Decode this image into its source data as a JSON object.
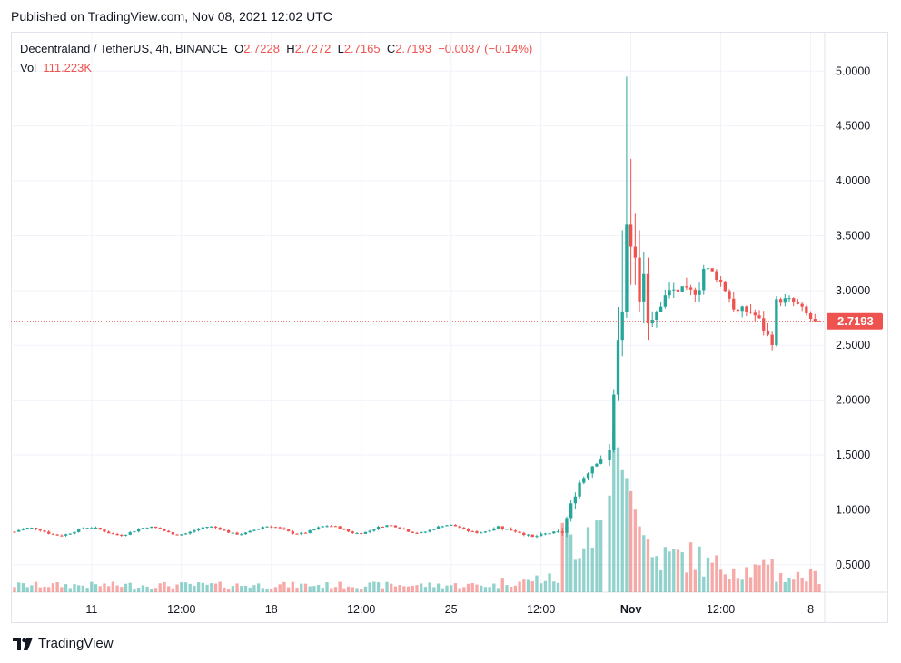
{
  "header": {
    "published": "Published on TradingView.com, Nov 08, 2021 12:02 UTC"
  },
  "legend": {
    "symbol": "Decentraland / TetherUS, 4h, BINANCE",
    "o_label": "O",
    "o_value": "2.7228",
    "h_label": "H",
    "h_value": "2.7272",
    "l_label": "L",
    "l_value": "2.7165",
    "c_label": "C",
    "c_value": "2.7193",
    "change": "−0.0037 (−0.14%)",
    "vol_label": "Vol",
    "vol_value": "111.223K"
  },
  "footer": {
    "brand": "TradingView"
  },
  "colors": {
    "up": "#26a69a",
    "down": "#ef5350",
    "grid": "#f0f3fa",
    "last_price_bg": "#ef5350"
  },
  "chart_data": {
    "type": "candlestick",
    "symbol": "Decentraland / TetherUS",
    "interval": "4h",
    "exchange": "BINANCE",
    "y_ticks": [
      "5.0000",
      "4.5000",
      "4.0000",
      "3.5000",
      "3.0000",
      "2.5000",
      "2.0000",
      "1.5000",
      "1.0000",
      "0.5000"
    ],
    "y_tick_values": [
      5.0,
      4.5,
      4.0,
      3.5,
      3.0,
      2.5,
      2.0,
      1.5,
      1.0,
      0.5
    ],
    "x_ticks": [
      "11",
      "12:00",
      "18",
      "12:00",
      "25",
      "12:00",
      "Nov",
      "12:00",
      "8"
    ],
    "x_tick_dates": [
      "2021-10-11",
      "2021-10-14",
      "2021-10-18",
      "2021-10-21",
      "2021-10-25",
      "2021-10-28",
      "2021-11-01",
      "2021-11-04",
      "2021-11-08"
    ],
    "last_price": "2.7193",
    "last_price_value": 2.7193,
    "ylim": [
      0.25,
      5.35
    ],
    "grid": true,
    "candle_hours": 4,
    "first_candle": "2021-10-08 00:00",
    "ohlc_segments": [
      {
        "from": "2021-10-08 00:00",
        "to": "2021-10-27 00:00",
        "start": 0.8,
        "end": 0.83,
        "base": 0.78,
        "wave": 0.035,
        "noise": 0.015,
        "volume": 8
      },
      {
        "from": "2021-10-27 00:00",
        "to": "2021-10-28 04:00",
        "start": 0.83,
        "end": 0.75,
        "base": 0.75,
        "wave": 0.01,
        "noise": 0.02,
        "volume": 12
      },
      {
        "from": "2021-10-28 04:00",
        "to": "2021-10-29 08:00",
        "start": 0.75,
        "end": 0.8,
        "base": 0.77,
        "wave": 0.01,
        "noise": 0.02,
        "volume": 15
      },
      {
        "from": "2021-10-29 08:00",
        "to": "2021-10-30 04:00",
        "start": 0.8,
        "end": 1.3,
        "base": 1.05,
        "wave": 0.05,
        "noise": 0.06,
        "volume": 60
      },
      {
        "from": "2021-10-30 04:00",
        "to": "2021-10-31 00:00",
        "start": 1.3,
        "end": 1.45,
        "base": 1.38,
        "wave": 0.06,
        "noise": 0.07,
        "volume": 75
      }
    ],
    "ohlc": [
      [
        "2021-10-31 04:00",
        1.45,
        1.6,
        1.4,
        1.55,
        110
      ],
      [
        "2021-10-31 08:00",
        1.55,
        2.1,
        1.52,
        2.05,
        185
      ],
      [
        "2021-10-31 12:00",
        2.05,
        2.85,
        2.0,
        2.55,
        165
      ],
      [
        "2021-10-31 16:00",
        2.55,
        3.55,
        2.4,
        2.8,
        140
      ],
      [
        "2021-10-31 20:00",
        2.8,
        4.95,
        2.75,
        3.6,
        130
      ],
      [
        "2021-11-01 00:00",
        3.6,
        4.2,
        3.05,
        3.4,
        115
      ],
      [
        "2021-11-01 04:00",
        3.4,
        3.7,
        3.05,
        3.3,
        95
      ],
      [
        "2021-11-01 08:00",
        3.3,
        3.55,
        2.8,
        2.9,
        75
      ],
      [
        "2021-11-01 12:00",
        2.9,
        3.35,
        2.7,
        3.15,
        65
      ],
      [
        "2021-11-01 16:00",
        3.15,
        3.3,
        2.55,
        2.7,
        60
      ]
    ],
    "ohlc_tail": [
      {
        "from": "2021-11-01 20:00",
        "to": "2021-11-03 20:00",
        "start": 2.7,
        "end": 3.2,
        "base": 2.95,
        "wave": 0.12,
        "noise": 0.1,
        "volume": 40
      },
      {
        "from": "2021-11-03 20:00",
        "to": "2021-11-05 04:00",
        "start": 3.2,
        "end": 2.8,
        "base": 3.0,
        "wave": 0.08,
        "noise": 0.08,
        "volume": 30
      },
      {
        "from": "2021-11-05 04:00",
        "to": "2021-11-06 12:00",
        "start": 2.8,
        "end": 2.55,
        "base": 2.65,
        "wave": 0.1,
        "noise": 0.09,
        "volume": 25
      },
      {
        "from": "2021-11-06 12:00",
        "to": "2021-11-06 16:00",
        "start": 2.55,
        "end": 2.9,
        "base": 2.7,
        "wave": 0.05,
        "noise": 0.1,
        "volume": 45
      },
      {
        "from": "2021-11-06 16:00",
        "to": "2021-11-08 12:00",
        "start": 2.9,
        "end": 2.72,
        "base": 2.8,
        "wave": 0.06,
        "noise": 0.06,
        "volume": 18
      }
    ],
    "volume_max_ratio": 0.29
  }
}
